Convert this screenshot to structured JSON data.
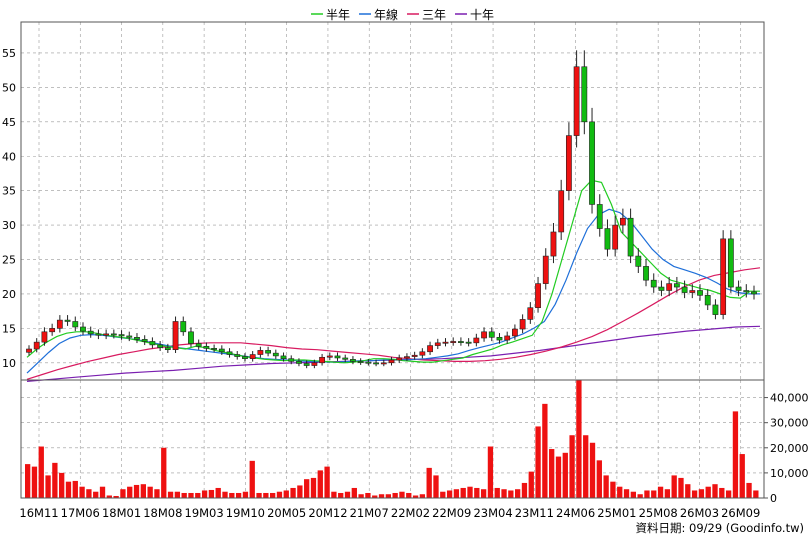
{
  "legend": [
    {
      "label": "半年",
      "color": "#22cc22"
    },
    {
      "label": "年線",
      "color": "#1e6fd9"
    },
    {
      "label": "三年",
      "color": "#d81b60"
    },
    {
      "label": "十年",
      "color": "#7a1fb0"
    }
  ],
  "footer": "資料日期: 09/29 (Goodinfo.tw)",
  "colors": {
    "up": "#ee1111",
    "down": "#11bb11",
    "volume": "#ee1111",
    "grid": "#999999"
  },
  "chart_data": [
    {
      "type": "candlestick",
      "title": "",
      "x_tick_labels": [
        "16M11",
        "17M06",
        "18M01",
        "18M08",
        "19M03",
        "19M10",
        "20M05",
        "20M12",
        "21M07",
        "22M02",
        "22M09",
        "23M04",
        "23M11",
        "24M06",
        "25M01",
        "25M08",
        "26M03",
        "26M09"
      ],
      "y_tick_labels": [
        10,
        15,
        20,
        25,
        30,
        35,
        40,
        45,
        50,
        55
      ],
      "ylim": [
        7.5,
        59.5
      ],
      "grid": true,
      "candles_close": [
        12,
        13,
        14.5,
        15,
        16.2,
        16,
        15.2,
        14.6,
        14.2,
        14,
        14.2,
        14.1,
        13.9,
        13.7,
        13.4,
        13.1,
        12.6,
        12.2,
        11.9,
        16,
        14.5,
        12.8,
        12.4,
        12.1,
        12,
        11.6,
        11.2,
        10.9,
        10.6,
        11.2,
        11.8,
        11.4,
        11,
        10.6,
        10.2,
        9.9,
        9.6,
        10,
        10.8,
        11,
        10.7,
        10.5,
        10.2,
        10.1,
        10,
        9.9,
        10,
        10.4,
        10.7,
        10.9,
        11.1,
        11.6,
        12.5,
        12.9,
        13,
        13.1,
        13,
        12.9,
        13.6,
        14.5,
        13.7,
        13.3,
        13.9,
        14.9,
        16.3,
        18,
        21.5,
        25.5,
        29,
        35,
        43,
        53,
        45,
        33,
        29.5,
        26.5,
        30,
        31,
        25.5,
        24,
        22,
        21,
        20.5,
        21.5,
        21,
        20.2,
        20.5,
        19.8,
        18.4,
        17,
        28,
        21,
        20.5,
        20.3,
        20
      ],
      "ma_half_year": [
        10.8,
        12,
        13,
        13.8,
        14.3,
        14.5,
        14.5,
        14.3,
        14,
        13.8,
        13.6,
        13.3,
        13,
        12.7,
        12.4,
        12.2,
        12,
        12.4,
        12.2,
        11.8,
        11.5,
        11.2,
        10.9,
        10.7,
        10.5,
        10.4,
        10.3,
        10.4,
        10.4,
        10.3,
        10.2,
        10.1,
        10,
        10.1,
        10.3,
        10.6,
        10.6,
        10.5,
        10.3,
        10.2,
        10.1,
        10.1,
        10.3,
        10.5,
        10.7,
        11.2,
        11.6,
        12,
        12.6,
        13,
        13.5,
        14,
        16,
        20,
        25,
        30,
        35,
        36.5,
        36.2,
        33,
        29,
        27.5,
        26,
        24.5,
        23,
        22,
        21.6,
        21.2,
        20.8,
        20.5,
        20,
        19.5,
        19.4,
        20.4,
        20.4
      ],
      "ma_year": [
        8.5,
        10,
        11.5,
        12.8,
        13.6,
        14,
        14.1,
        14,
        13.8,
        13.6,
        13.4,
        13.1,
        12.8,
        12.5,
        12.2,
        12,
        11.8,
        11.6,
        11.4,
        11.2,
        11,
        10.8,
        10.6,
        10.5,
        10.4,
        10.3,
        10.2,
        10.2,
        10.1,
        10.1,
        10.2,
        10.3,
        10.3,
        10.4,
        10.5,
        10.4,
        10.5,
        10.6,
        10.8,
        11,
        11.3,
        11.8,
        12.2,
        12.6,
        13,
        13.6,
        14.2,
        15,
        16,
        18.5,
        22,
        26,
        29.5,
        31.5,
        32.3,
        31.8,
        30.5,
        28.5,
        26.5,
        25,
        24,
        23.5,
        23,
        22.4,
        21.6,
        20.7,
        20.2,
        20,
        20
      ],
      "ma_three_year": [
        7.6,
        8.3,
        9,
        9.6,
        10.2,
        10.7,
        11.2,
        11.6,
        12,
        12.3,
        12.6,
        12.8,
        12.9,
        12.9,
        12.9,
        12.7,
        12.5,
        12.2,
        12,
        11.9,
        11.7,
        11.5,
        11.3,
        11.1,
        10.8,
        10.6,
        10.4,
        10.3,
        10.2,
        10.2,
        10.3,
        10.5,
        10.8,
        11.2,
        11.7,
        12.3,
        13,
        13.8,
        14.8,
        16,
        17.2,
        18.5,
        19.8,
        21,
        22,
        22.7,
        23.1,
        23.5,
        23.8
      ],
      "ma_ten_year": [
        7.3,
        7.6,
        7.9,
        8.2,
        8.5,
        8.7,
        8.9,
        9.2,
        9.5,
        9.7,
        9.9,
        10,
        10.1,
        10.2,
        10.3,
        10.4,
        10.5,
        10.6,
        10.8,
        11,
        11.4,
        11.8,
        12.3,
        12.8,
        13.3,
        13.8,
        14.2,
        14.6,
        14.9,
        15.2,
        15.3
      ]
    },
    {
      "type": "bar",
      "title": "",
      "y_tick_labels": [
        "0",
        "10,000",
        "20,000",
        "30,000",
        "40,000"
      ],
      "ylim": [
        0,
        47000
      ],
      "grid": true,
      "values": [
        13500,
        12500,
        20500,
        9000,
        14000,
        10000,
        6500,
        6800,
        4500,
        3500,
        2500,
        4500,
        1000,
        800,
        3500,
        4500,
        5200,
        5500,
        4500,
        3500,
        20000,
        2500,
        2500,
        2000,
        2000,
        2000,
        3000,
        3200,
        4000,
        2500,
        2000,
        2000,
        2500,
        14800,
        2000,
        2000,
        2000,
        2500,
        3000,
        4000,
        5000,
        7500,
        8000,
        11000,
        12500,
        2500,
        2000,
        2500,
        4000,
        1500,
        2000,
        1000,
        1500,
        1500,
        2000,
        2500,
        2000,
        1000,
        1500,
        12000,
        9000,
        2500,
        3000,
        3500,
        4000,
        4500,
        4000,
        3500,
        20500,
        4000,
        3500,
        3000,
        3500,
        6000,
        10500,
        28500,
        37500,
        19500,
        16500,
        18000,
        25000,
        47000,
        25000,
        22000,
        15000,
        9000,
        6500,
        4500,
        3500,
        2500,
        1500,
        3000,
        3000,
        4500,
        3500,
        9000,
        8000,
        5500,
        3000,
        3500,
        4500,
        5500,
        4000,
        3000,
        34500,
        17500,
        6000,
        3000
      ]
    }
  ]
}
